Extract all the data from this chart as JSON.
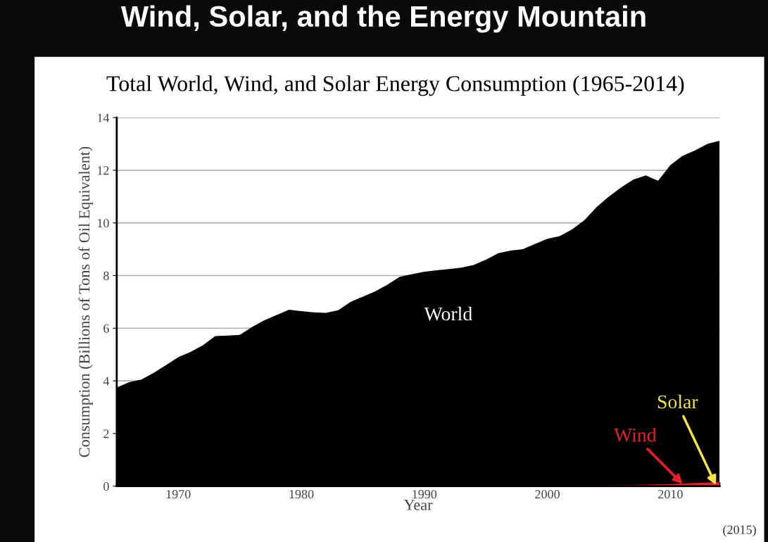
{
  "chart_data": {
    "type": "area",
    "title": "Wind, Solar, and the Energy Mountain",
    "subtitle": "Total World, Wind, and Solar Energy Consumption (1965-2014)",
    "xlabel": "Year",
    "ylabel": "Consumption (Billions of Tons of Oil Equivalent)",
    "series": [
      {
        "name": "World",
        "color": "#000000",
        "x": [
          1965,
          1966,
          1967,
          1968,
          1969,
          1970,
          1971,
          1972,
          1973,
          1974,
          1975,
          1976,
          1977,
          1978,
          1979,
          1980,
          1981,
          1982,
          1983,
          1984,
          1985,
          1986,
          1987,
          1988,
          1989,
          1990,
          1991,
          1992,
          1993,
          1994,
          1995,
          1996,
          1997,
          1998,
          1999,
          2000,
          2001,
          2002,
          2003,
          2004,
          2005,
          2006,
          2007,
          2008,
          2009,
          2010,
          2011,
          2012,
          2013,
          2014
        ],
        "values": [
          3.75,
          3.95,
          4.05,
          4.3,
          4.6,
          4.9,
          5.1,
          5.35,
          5.7,
          5.72,
          5.75,
          6.05,
          6.3,
          6.5,
          6.7,
          6.65,
          6.6,
          6.58,
          6.68,
          7.0,
          7.2,
          7.4,
          7.65,
          7.95,
          8.05,
          8.15,
          8.2,
          8.25,
          8.3,
          8.4,
          8.6,
          8.85,
          8.95,
          9.0,
          9.2,
          9.4,
          9.5,
          9.75,
          10.1,
          10.6,
          11.0,
          11.35,
          11.65,
          11.8,
          11.6,
          12.2,
          12.55,
          12.75,
          13.0,
          13.12
        ]
      },
      {
        "name": "Wind",
        "color": "#e8202a",
        "x": [
          2000,
          2002,
          2004,
          2006,
          2008,
          2010,
          2011,
          2012,
          2013,
          2014
        ],
        "values": [
          0.01,
          0.02,
          0.03,
          0.04,
          0.06,
          0.08,
          0.1,
          0.12,
          0.14,
          0.16
        ]
      },
      {
        "name": "Solar",
        "color": "#f0a020",
        "x": [
          2008,
          2010,
          2011,
          2012,
          2013,
          2014
        ],
        "values": [
          0.005,
          0.01,
          0.015,
          0.02,
          0.03,
          0.04
        ]
      }
    ],
    "xlim": [
      1965,
      2014
    ],
    "xticks": [
      1970,
      1980,
      1990,
      2000,
      2010
    ],
    "ylim": [
      0,
      14
    ],
    "yticks": [
      0,
      2,
      4,
      6,
      8,
      10,
      12,
      14
    ],
    "grid": "y",
    "annotations": [
      "(2015)"
    ]
  }
}
